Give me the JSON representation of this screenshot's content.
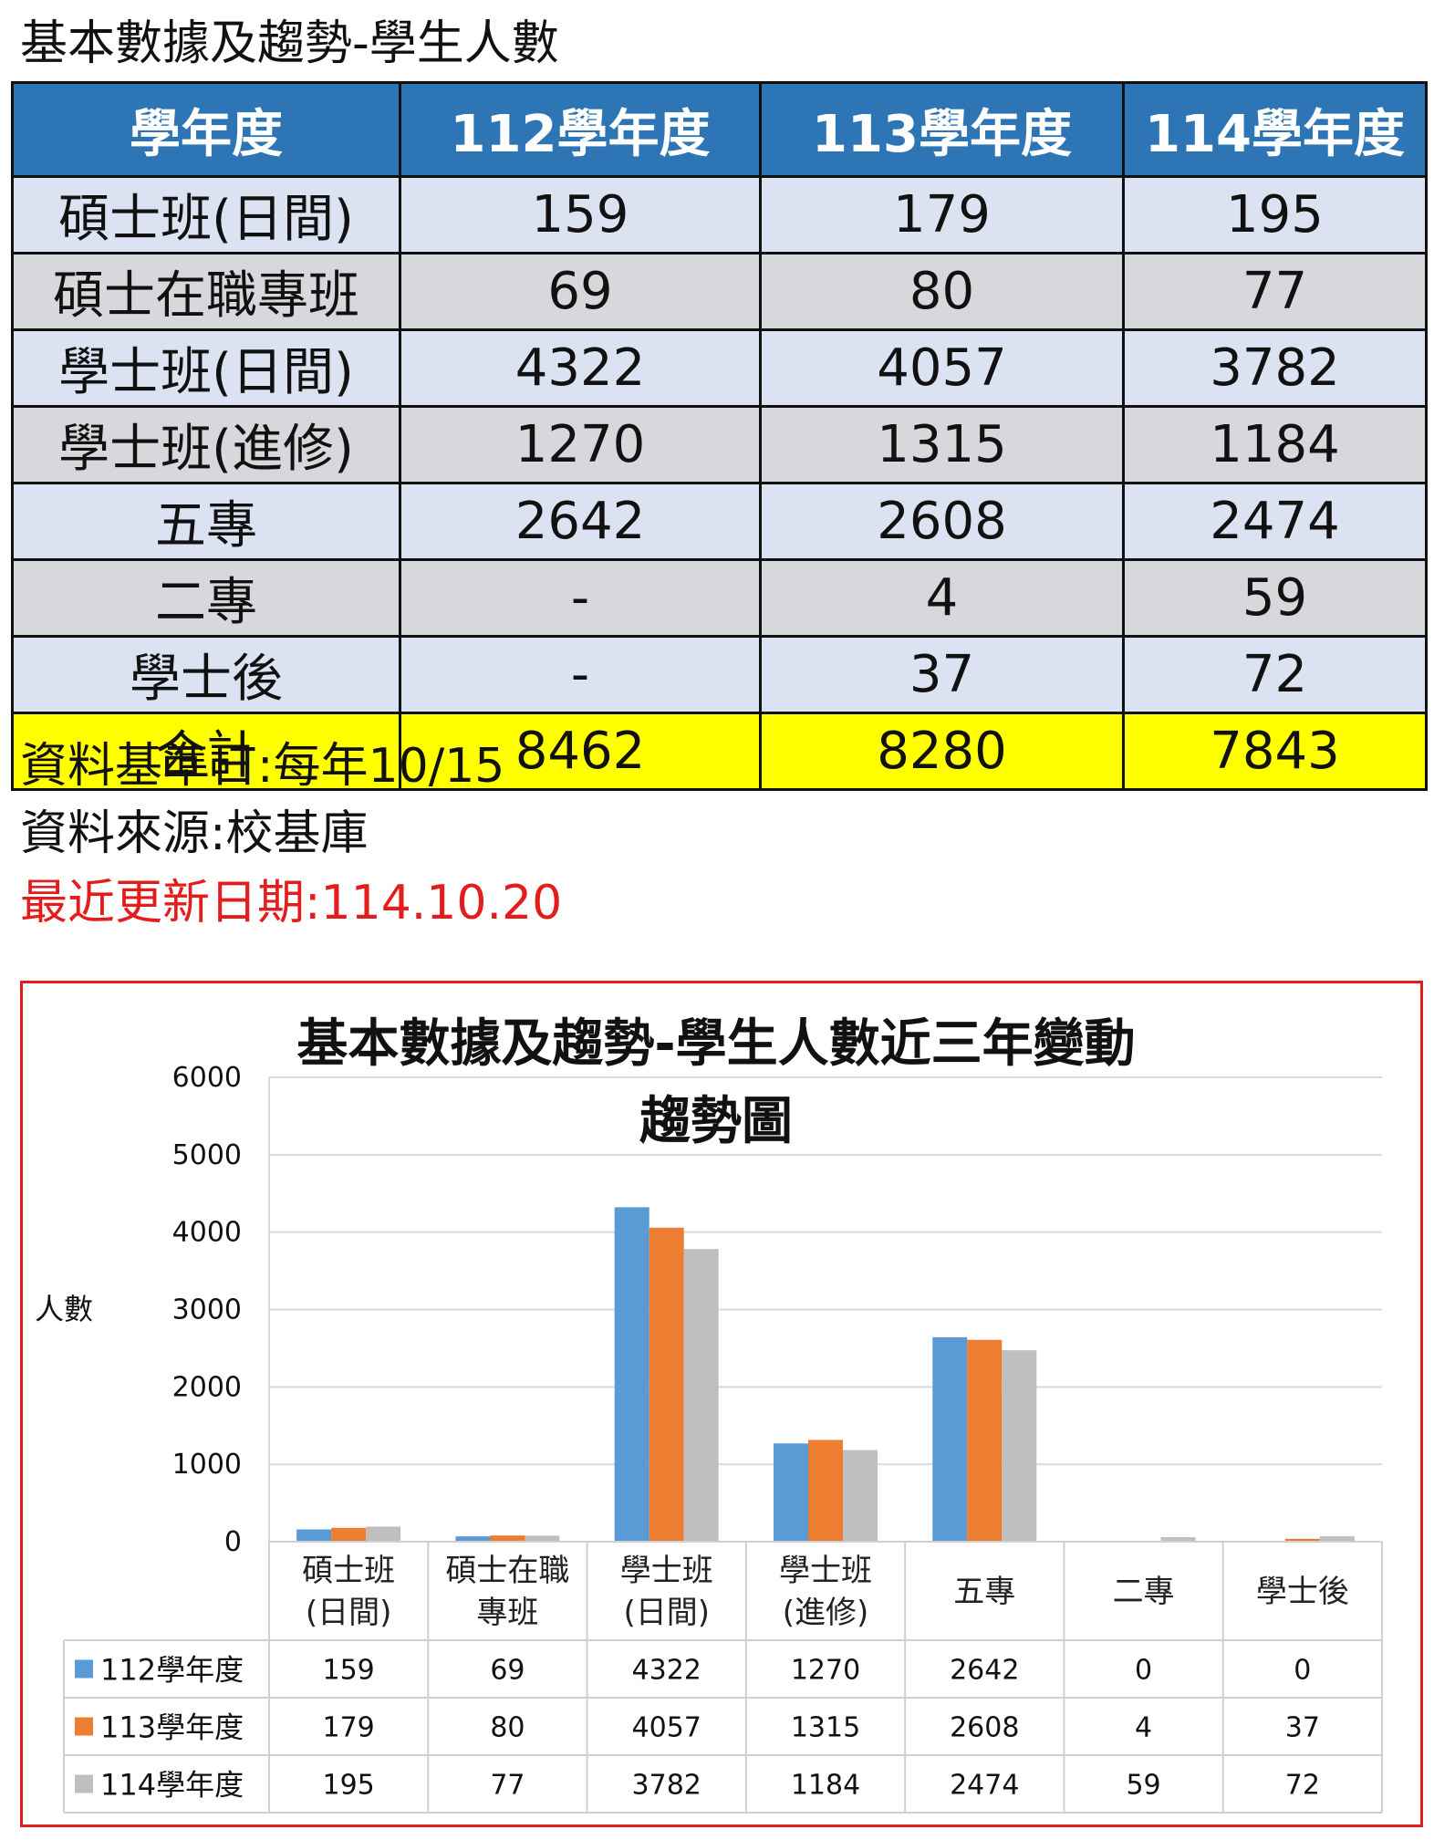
{
  "page_title": "基本數據及趨勢-學生人數",
  "table": {
    "headers": [
      "學年度",
      "112學年度",
      "113學年度",
      "114學年度"
    ],
    "rows": [
      {
        "label": "碩士班(日間)",
        "values": [
          "159",
          "179",
          "195"
        ]
      },
      {
        "label": "碩士在職專班",
        "values": [
          "69",
          "80",
          "77"
        ]
      },
      {
        "label": "學士班(日間)",
        "values": [
          "4322",
          "4057",
          "3782"
        ]
      },
      {
        "label": "學士班(進修)",
        "values": [
          "1270",
          "1315",
          "1184"
        ]
      },
      {
        "label": "五專",
        "values": [
          "2642",
          "2608",
          "2474"
        ]
      },
      {
        "label": "二專",
        "values": [
          "-",
          "4",
          "59"
        ]
      },
      {
        "label": "學士後",
        "values": [
          "-",
          "37",
          "72"
        ]
      }
    ],
    "total": {
      "label": "合計",
      "values": [
        "8462",
        "8280",
        "7843"
      ]
    }
  },
  "notes": {
    "base_date": "資料基準日:每年10/15",
    "source": "資料來源:校基庫",
    "updated": "最近更新日期:114.10.20"
  },
  "chart_data": {
    "type": "bar",
    "title": [
      "基本數據及趨勢-學生人數近三年變動",
      "趨勢圖"
    ],
    "ylabel": "人數",
    "ylim": [
      0,
      6000
    ],
    "yticks": [
      0,
      1000,
      2000,
      3000,
      4000,
      5000,
      6000
    ],
    "grid": true,
    "categories": [
      [
        "碩士班",
        "(日間)"
      ],
      [
        "碩士在職",
        "專班"
      ],
      [
        "學士班",
        "(日間)"
      ],
      [
        "學士班",
        "(進修)"
      ],
      [
        "五專"
      ],
      [
        "二專"
      ],
      [
        "學士後"
      ]
    ],
    "series": [
      {
        "name": "112學年度",
        "color": "#5b9bd5",
        "values": [
          159,
          69,
          4322,
          1270,
          2642,
          0,
          0
        ]
      },
      {
        "name": "113學年度",
        "color": "#ed7d31",
        "values": [
          179,
          80,
          4057,
          1315,
          2608,
          4,
          37
        ]
      },
      {
        "name": "114學年度",
        "color": "#bfbfbf",
        "values": [
          195,
          77,
          3782,
          1184,
          2474,
          59,
          72
        ]
      }
    ]
  }
}
